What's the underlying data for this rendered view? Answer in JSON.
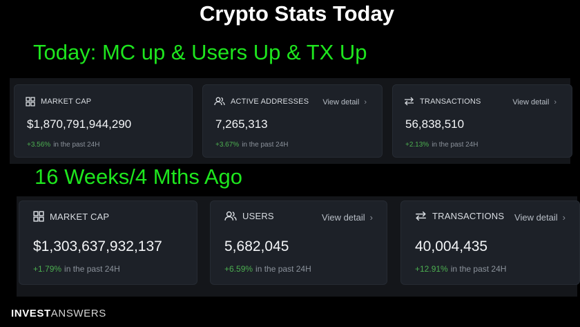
{
  "title": "Crypto Stats Today",
  "today": {
    "heading": "Today: MC up & Users Up & TX Up",
    "cards": [
      {
        "icon": "grid-icon",
        "label": "MARKET CAP",
        "detail": "",
        "value": "$1,870,791,944,290",
        "pct": "+3.56%",
        "suffix": "in the past 24H"
      },
      {
        "icon": "users-icon",
        "label": "ACTIVE ADDRESSES",
        "detail": "View detail",
        "value": "7,265,313",
        "pct": "+3.67%",
        "suffix": "in the past 24H"
      },
      {
        "icon": "arrows-icon",
        "label": "TRANSACTIONS",
        "detail": "View detail",
        "value": "56,838,510",
        "pct": "+2.13%",
        "suffix": "in the past 24H"
      }
    ]
  },
  "ago": {
    "heading": "16 Weeks/4 Mths Ago",
    "cards": [
      {
        "icon": "grid-icon",
        "label": "MARKET CAP",
        "detail": "",
        "value": "$1,303,637,932,137",
        "pct": "+1.79%",
        "suffix": "in the past 24H"
      },
      {
        "icon": "users-icon",
        "label": "USERS",
        "detail": "View detail",
        "value": "5,682,045",
        "pct": "+6.59%",
        "suffix": "in the past 24H"
      },
      {
        "icon": "arrows-icon",
        "label": "TRANSACTIONS",
        "detail": "View detail",
        "value": "40,004,435",
        "pct": "+12.91%",
        "suffix": "in the past 24H"
      }
    ]
  },
  "brand": {
    "part1": "INVEST",
    "part2": "ANSWERS"
  },
  "colors": {
    "heading": "#1ee61e",
    "positive": "#4caf50",
    "card_bg": "#1d2128",
    "panel_bg": "#14161a"
  }
}
